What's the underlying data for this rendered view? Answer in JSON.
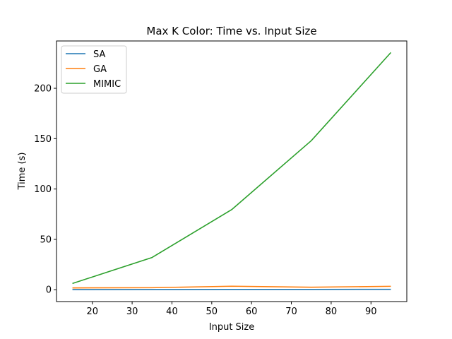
{
  "chart_data": {
    "type": "line",
    "title": "Max K Color: Time vs. Input Size",
    "xlabel": "Input Size",
    "ylabel": "Time (s)",
    "x": [
      15,
      35,
      55,
      75,
      95
    ],
    "xlim": [
      11,
      99
    ],
    "ylim": [
      -11.76,
      247
    ],
    "xticks": [
      20,
      30,
      40,
      50,
      60,
      70,
      80,
      90
    ],
    "yticks": [
      0,
      50,
      100,
      150,
      200
    ],
    "grid": false,
    "legend_position": "top-left",
    "series": [
      {
        "name": "SA",
        "color": "#1f77b4",
        "values": [
          0.1,
          0.2,
          0.3,
          0.3,
          0.4
        ]
      },
      {
        "name": "GA",
        "color": "#ff7f0e",
        "values": [
          1.8,
          2.0,
          3.5,
          2.5,
          3.4
        ]
      },
      {
        "name": "MIMIC",
        "color": "#2ca02c",
        "values": [
          6.2,
          32.0,
          79.5,
          148.0,
          235.5
        ]
      }
    ]
  }
}
